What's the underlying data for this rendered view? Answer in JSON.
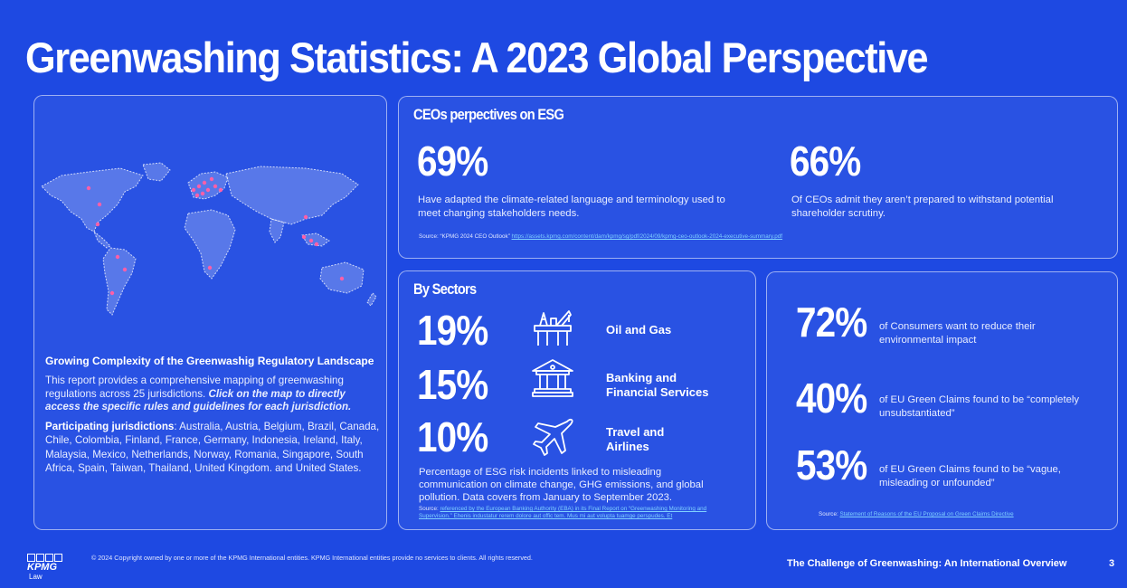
{
  "title": "Greenwashing Statistics: A 2023 Global Perspective",
  "map_panel": {
    "heading": "Growing Complexity of the Greenwashig Regulatory Landscape",
    "description": "This report provides a comprehensive mapping of greenwashing regulations across 25 jurisdictions.",
    "description_emphasis": "Click on the map to directly access the specific rules and guidelines for each jurisdiction.",
    "jurisdictions_label": "Participating jurisdictions",
    "jurisdictions": ": Australia, Austria, Belgium, Brazil, Canada, Chile, Colombia, Finland, France, Germany, Indonesia, Ireland, Italy, Malaysia, Mexico, Netherlands, Norway, Romania, Singapore, South Africa, Spain, Taiwan, Thailand, United Kingdom. and United States."
  },
  "ceo": {
    "title": "CEOs perpectives on ESG",
    "stats": [
      {
        "value": "69%",
        "desc": "Have adapted the climate-related language and terminology used to meet changing stakeholders needs."
      },
      {
        "value": "66%",
        "desc": "Of CEOs admit they aren’t prepared to withstand potential shareholder scrutiny."
      }
    ],
    "source_label": "Source: “KPMG 2024 CEO Outlook”",
    "source_link": "https://assets.kpmg.com/content/dam/kpmg/sg/pdf/2024/09/kpmg-ceo-outlook-2024-executive-summary.pdf"
  },
  "sectors": {
    "title": "By Sectors",
    "items": [
      {
        "value": "19%",
        "label_line1": "Oil and Gas",
        "label_line2": "",
        "icon": "oil-rig-icon"
      },
      {
        "value": "15%",
        "label_line1": "Banking and",
        "label_line2": "Financial Services",
        "icon": "bank-icon"
      },
      {
        "value": "10%",
        "label_line1": "Travel and",
        "label_line2": "Airlines",
        "icon": "airplane-icon"
      }
    ],
    "description": "Percentage of ESG risk incidents linked to misleading communication on climate change, GHG emissions, and global pollution. Data covers from January to September 2023.",
    "source_label": "Source:",
    "source_link": "referenced by the European Banking Authority (EBA) in its Final Report on “Greenwashing Monitoring and Supervision.” Ehenis industatur rerem dolore aut offic tem. Mus mi aut volupta tuamge perspudes. Et"
  },
  "consumers": {
    "stats": [
      {
        "value": "72%",
        "desc": "of Consumers want to reduce their environmental impact"
      },
      {
        "value": "40%",
        "desc": "of EU Green Claims found to be “completely unsubstantiated”"
      },
      {
        "value": "53%",
        "desc": "of EU Green Claims found to be “vague, misleading or unfounded”"
      }
    ],
    "source_label": "Source:",
    "source_link": "Statement of Reasons of the EU Proposal on Green Claims Directive"
  },
  "footer": {
    "logo": "KPMG",
    "logo_sub": "Law",
    "copyright": "© 2024 Copyright owned by one or more of the KPMG International entities. KPMG International entities provide no services to clients. All rights reserved.",
    "doc_title": "The Challenge of Greenwashing: An International Overview",
    "page": "3"
  },
  "colors": {
    "background": "#1e49e2",
    "marker": "#ff5fa8",
    "link": "#7fd0ff"
  }
}
